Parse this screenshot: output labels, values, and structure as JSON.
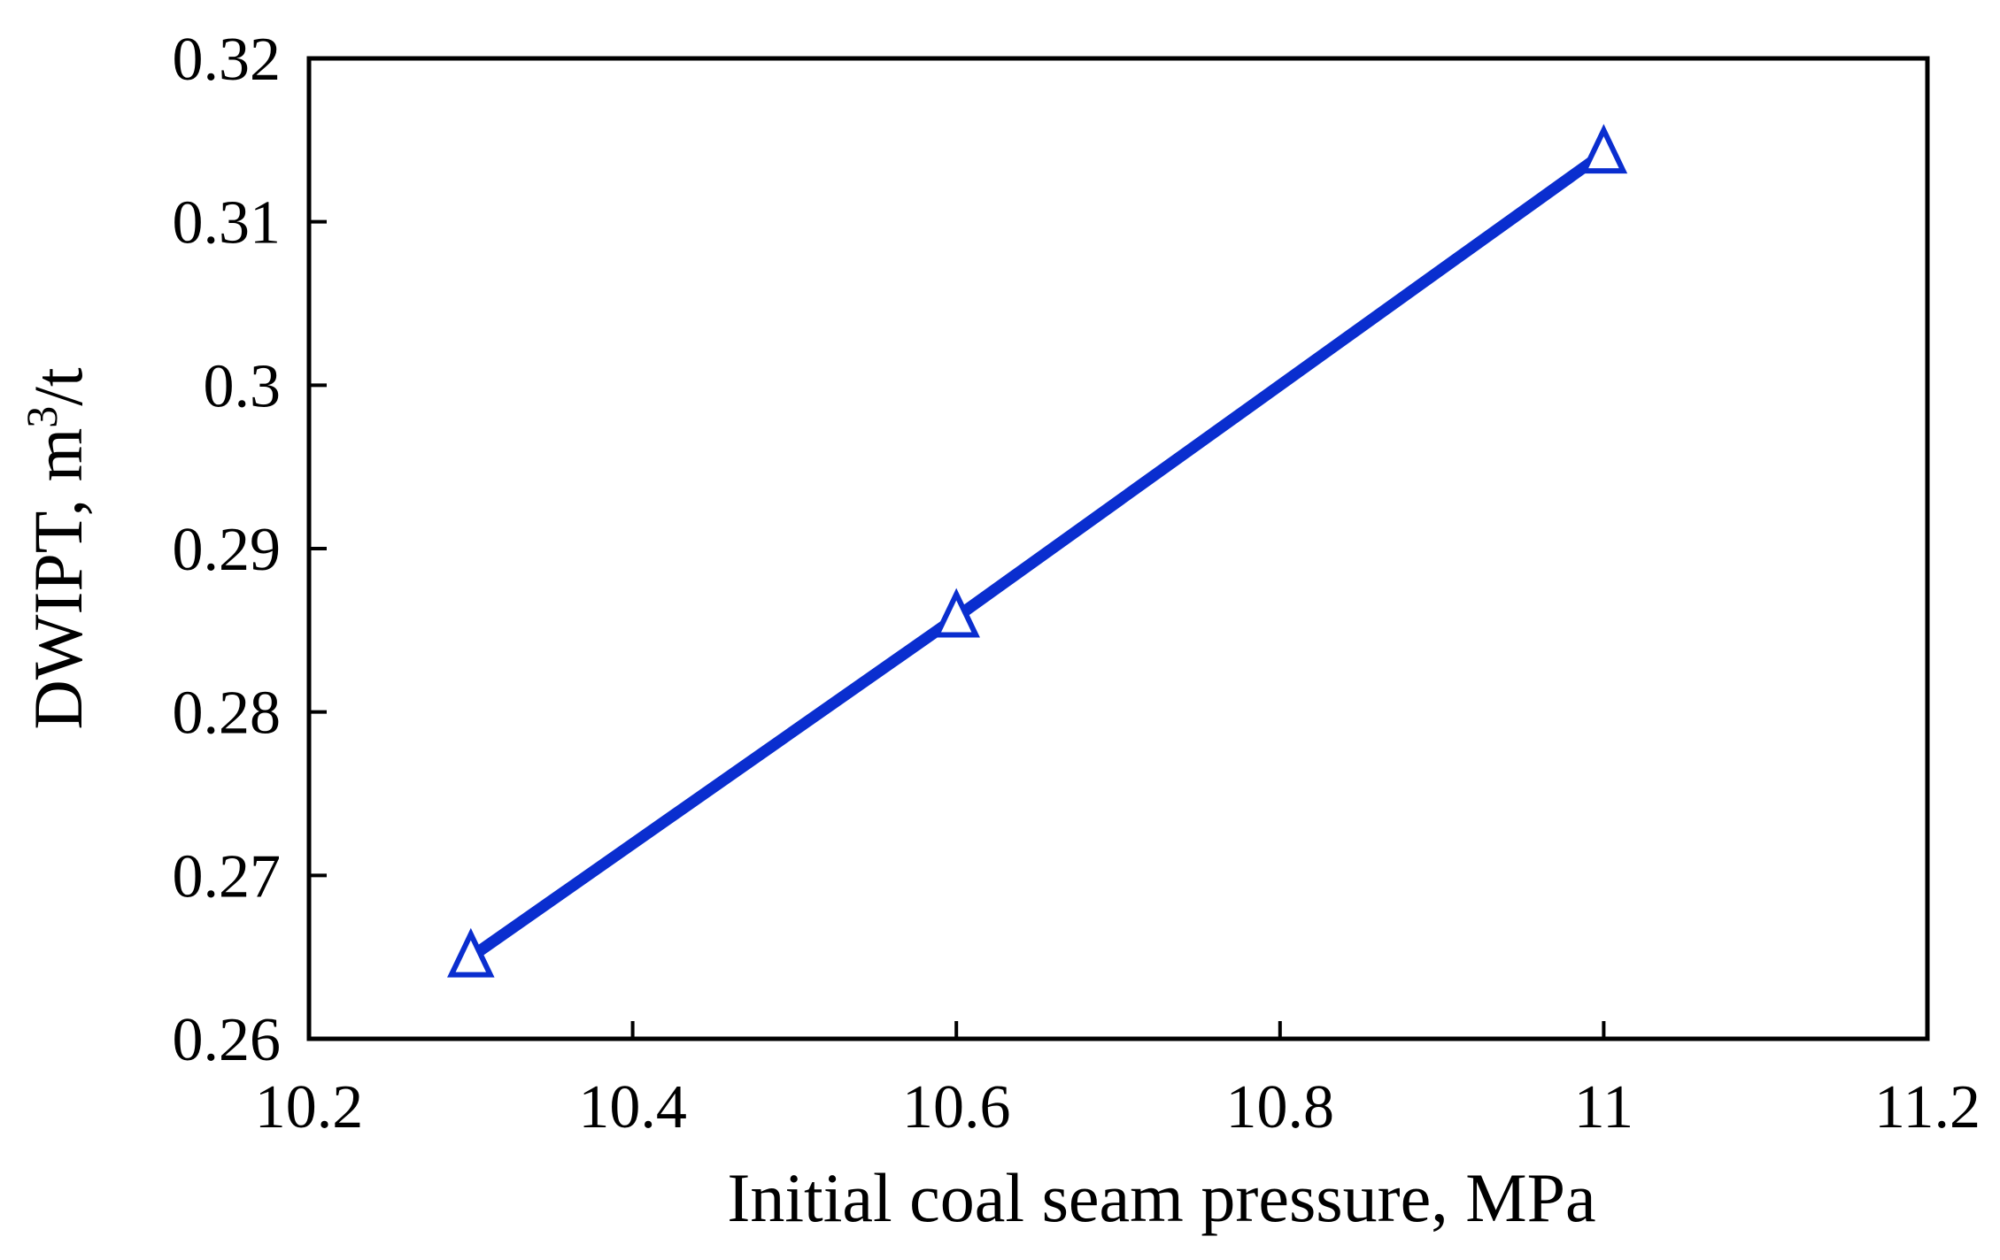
{
  "chart_data": {
    "type": "line",
    "title": "",
    "xlabel": "Initial coal seam pressure, MPa",
    "ylabel": {
      "base": "DWIPT, m",
      "superscript": "3",
      "suffix": "/t"
    },
    "xlim": [
      10.2,
      11.2
    ],
    "ylim": [
      0.26,
      0.32
    ],
    "xticks": [
      10.2,
      10.4,
      10.6,
      10.8,
      11,
      11.2
    ],
    "xtick_labels": [
      "10.2",
      "10.4",
      "10.6",
      "10.8",
      "11",
      "11.2"
    ],
    "yticks": [
      0.26,
      0.27,
      0.28,
      0.29,
      0.3,
      0.31,
      0.32
    ],
    "ytick_labels": [
      "0.26",
      "0.27",
      "0.28",
      "0.29",
      "0.3",
      "0.31",
      "0.32"
    ],
    "grid": false,
    "series": [
      {
        "name": "DWIPT",
        "color": "#0a2ecf",
        "marker": "triangle",
        "x": [
          10.3,
          10.6,
          11.0
        ],
        "y": [
          0.265,
          0.2858,
          0.3142
        ]
      }
    ]
  }
}
